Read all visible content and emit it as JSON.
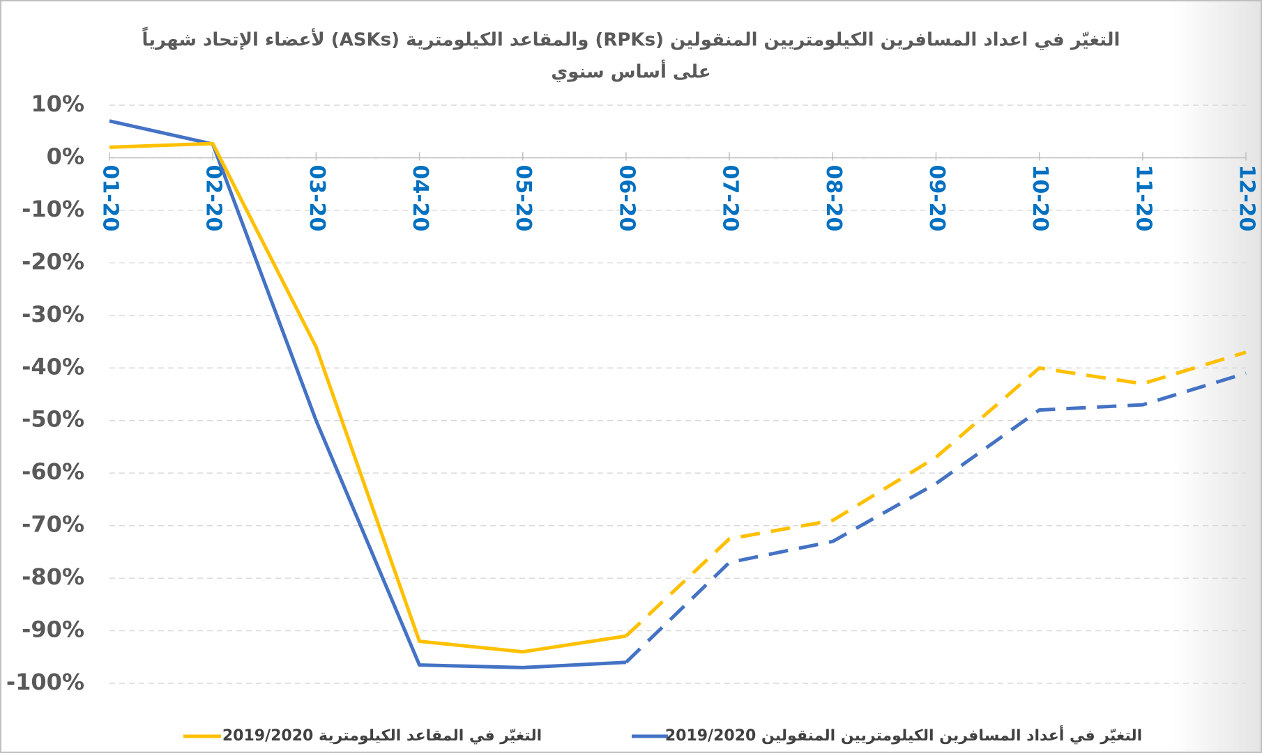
{
  "chart_data": {
    "type": "line",
    "title": [
      "التغيّر في اعداد المسافرين الكيلومتريين المنقولين (RPKs) والمقاعد الكيلومترية (ASKs) لأعضاء الإتحاد شهرياً",
      "على أساس سنوي"
    ],
    "categories": [
      "01-20",
      "02-20",
      "03-20",
      "04-20",
      "05-20",
      "06-20",
      "07-20",
      "08-20",
      "09-20",
      "10-20",
      "11-20",
      "12-20"
    ],
    "series": [
      {
        "name": "التغيّر في المقاعد الكيلومترية 2019/2020",
        "color": "#ffc000",
        "values": [
          2,
          2.7,
          -36,
          -92,
          -94,
          -91,
          -72.5,
          -69,
          -57,
          -40,
          -43,
          -37
        ]
      },
      {
        "name": "التغيّر في أعداد المسافرين الكيلومتريين المنقولين 2019/2020",
        "color": "#4472c4",
        "values": [
          7,
          2.6,
          -50,
          -96.5,
          -97,
          -96,
          -77,
          -73,
          -62,
          -48,
          -47,
          -41
        ]
      }
    ],
    "solid_until": "06-20",
    "ylim": [
      -100,
      10
    ],
    "yticks": [
      {
        "value": 10,
        "label": "10%"
      },
      {
        "value": 0,
        "label": "0%"
      },
      {
        "value": -10,
        "label": "-10%"
      },
      {
        "value": -20,
        "label": "-20%"
      },
      {
        "value": -30,
        "label": "-30%"
      },
      {
        "value": -40,
        "label": "-40%"
      },
      {
        "value": -50,
        "label": "-50%"
      },
      {
        "value": -60,
        "label": "-60%"
      },
      {
        "value": -70,
        "label": "-70%"
      },
      {
        "value": -80,
        "label": "-80%"
      },
      {
        "value": -90,
        "label": "-90%"
      },
      {
        "value": -100,
        "label": "-100%"
      }
    ],
    "grid": true,
    "legend": "bottom"
  }
}
